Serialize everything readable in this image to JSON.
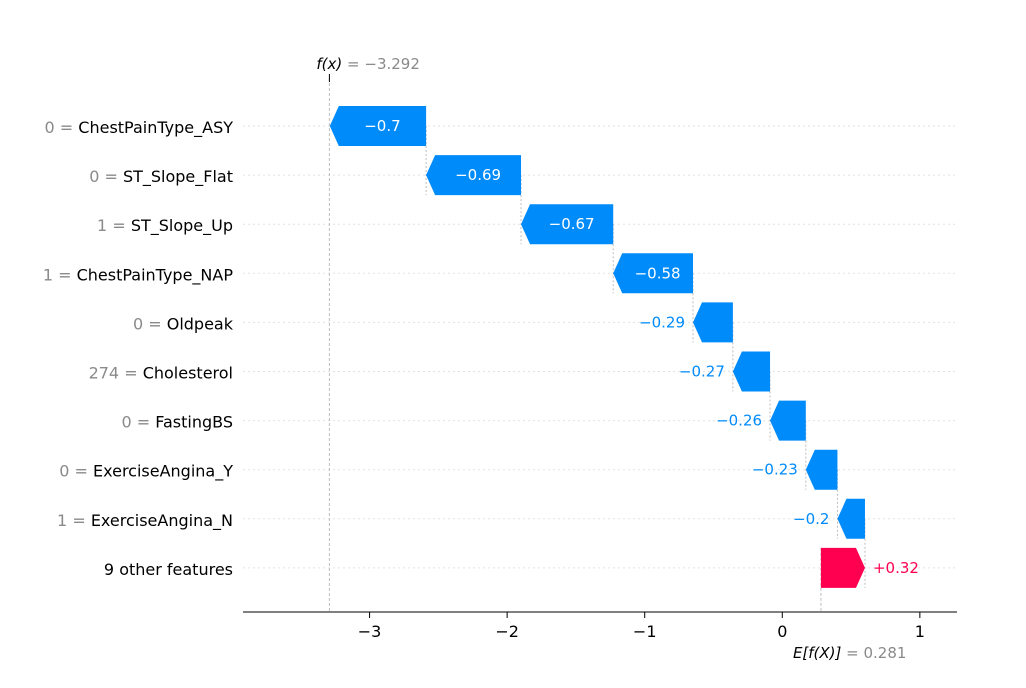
{
  "chart_data": {
    "type": "waterfall",
    "fx": {
      "symbol": "f(x)",
      "value": -3.292,
      "display": "−3.292"
    },
    "base": {
      "symbol": "E[f(X)]",
      "value": 0.281,
      "display": "0.281"
    },
    "features": [
      {
        "feature_value": "0",
        "name": "ChestPainType_ASY",
        "shap": -0.7,
        "label": "−0.7"
      },
      {
        "feature_value": "0",
        "name": "ST_Slope_Flat",
        "shap": -0.69,
        "label": "−0.69"
      },
      {
        "feature_value": "1",
        "name": "ST_Slope_Up",
        "shap": -0.67,
        "label": "−0.67"
      },
      {
        "feature_value": "1",
        "name": "ChestPainType_NAP",
        "shap": -0.58,
        "label": "−0.58"
      },
      {
        "feature_value": "0",
        "name": "Oldpeak",
        "shap": -0.29,
        "label": "−0.29"
      },
      {
        "feature_value": "274",
        "name": "Cholesterol",
        "shap": -0.27,
        "label": "−0.27"
      },
      {
        "feature_value": "0",
        "name": "FastingBS",
        "shap": -0.26,
        "label": "−0.26"
      },
      {
        "feature_value": "0",
        "name": "ExerciseAngina_Y",
        "shap": -0.23,
        "label": "−0.23"
      },
      {
        "feature_value": "1",
        "name": "ExerciseAngina_N",
        "shap": -0.2,
        "label": "−0.2"
      },
      {
        "feature_value": "",
        "name": "9 other features",
        "shap": 0.32,
        "label": "+0.32"
      }
    ],
    "xticks": [
      {
        "value": -3,
        "label": "−3"
      },
      {
        "value": -2,
        "label": "−2"
      },
      {
        "value": -1,
        "label": "−1"
      },
      {
        "value": 0,
        "label": "0"
      },
      {
        "value": 1,
        "label": "1"
      }
    ],
    "xlim": [
      -3.92,
      1.27
    ],
    "colors": {
      "negative": "#008bfb",
      "positive": "#ff0051",
      "muted": "#8a8a8a",
      "grid": "#e2e2e2"
    }
  }
}
